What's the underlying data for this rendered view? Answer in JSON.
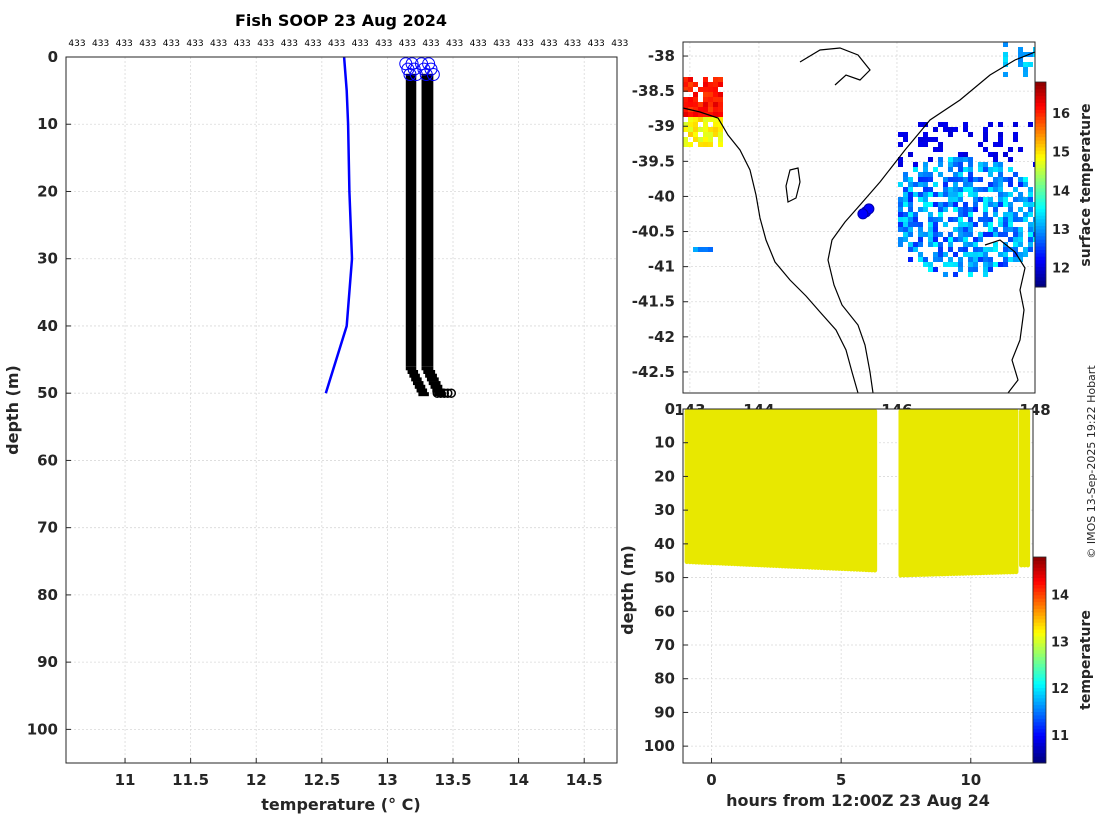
{
  "figure": {
    "title": "Fish SOOP 23 Aug 2024",
    "credit": "© IMOS 13-Sep-2025 19:22 Hobart"
  },
  "chart_data": [
    {
      "type": "line",
      "name": "profile",
      "xlabel": "temperature (° C)",
      "ylabel": "depth (m)",
      "xlim": [
        10.55,
        14.75
      ],
      "ylim": [
        105,
        0
      ],
      "x_ticks": [
        11,
        11.5,
        12,
        12.5,
        13,
        13.5,
        14,
        14.5
      ],
      "y_ticks": [
        0,
        10,
        20,
        30,
        40,
        50,
        60,
        70,
        80,
        90,
        100
      ],
      "grid": true,
      "top_label": "433",
      "series": [
        {
          "color": "#0000ff",
          "points": [
            [
              12.67,
              0
            ],
            [
              12.69,
              5
            ],
            [
              12.7,
              10
            ],
            [
              12.71,
              20
            ],
            [
              12.73,
              30
            ],
            [
              12.69,
              40
            ],
            [
              12.53,
              50
            ]
          ]
        }
      ],
      "band_left": {
        "x_min": 13.14,
        "x_max": 13.22,
        "depth_top": 0.5,
        "depth_bottom": 50
      },
      "band_right": {
        "x_min": 13.26,
        "x_max": 13.35,
        "depth_top": 0.5,
        "depth_bottom": 50
      }
    },
    {
      "type": "heatmap",
      "name": "surface-temperature-map",
      "xlim": [
        142.9,
        148.0
      ],
      "ylim": [
        -42.8,
        -37.8
      ],
      "x_ticks": [
        143,
        144,
        146,
        148
      ],
      "y_ticks": [
        -38,
        -38.5,
        -39,
        -39.5,
        -40,
        -40.5,
        -41,
        -41.5,
        -42,
        -42.5
      ],
      "colorbar": {
        "label": "surface temperature",
        "min": 11.5,
        "max": 16.8,
        "ticks": [
          12,
          13,
          14,
          15,
          16
        ]
      },
      "vessel_position": [
        145.55,
        -40.22
      ],
      "grid": true
    },
    {
      "type": "scatter",
      "name": "depth-time-section",
      "xlabel": "hours from 12:00Z 23 Aug 24",
      "ylabel": "depth (m)",
      "xlim": [
        -1.1,
        12.4
      ],
      "ylim": [
        105,
        0
      ],
      "x_ticks": [
        0,
        5,
        10
      ],
      "y_ticks": [
        0,
        10,
        20,
        30,
        40,
        50,
        60,
        70,
        80,
        90,
        100
      ],
      "colorbar": {
        "label": "temperature",
        "min": 10.4,
        "max": 14.8,
        "ticks": [
          11,
          12,
          13,
          14
        ]
      },
      "value_color": "#e8e800",
      "segments": [
        {
          "t_start": -0.95,
          "t_end": 6.3,
          "bottom_start": 46,
          "bottom_end": 48.5
        },
        {
          "t_start": 7.3,
          "t_end": 11.75,
          "bottom_start": 50,
          "bottom_end": 49
        },
        {
          "t_start": 11.95,
          "t_end": 12.2,
          "bottom_start": 47,
          "bottom_end": 47
        }
      ]
    }
  ]
}
